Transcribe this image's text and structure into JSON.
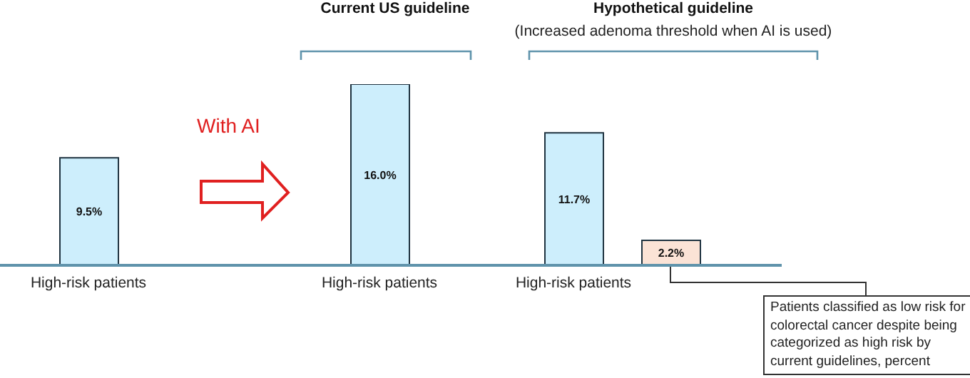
{
  "chart_data": {
    "type": "bar",
    "categories": [
      "High-risk patients",
      null,
      null,
      "High-risk patients",
      null,
      "High-risk patients",
      null
    ],
    "values": [
      9.5,
      null,
      null,
      16.0,
      null,
      11.7,
      2.2
    ],
    "value_labels": [
      "9.5%",
      null,
      null,
      "16.0%",
      null,
      "11.7%",
      "2.2%"
    ],
    "colors": [
      "#cdeefc",
      "#cdeefc",
      "#cdeefc",
      "#cdeefc",
      "#cdeefc",
      "#cdeefc",
      "#fbe3d6"
    ],
    "annotations": [
      "With AI",
      "Current US guideline",
      "Hypothetical guideline",
      "(Increased adenoma threshold when AI is used)",
      "Patients classified as low risk for colorectal cancer despite being categorized as high risk by current guidelines, percent"
    ]
  }
}
